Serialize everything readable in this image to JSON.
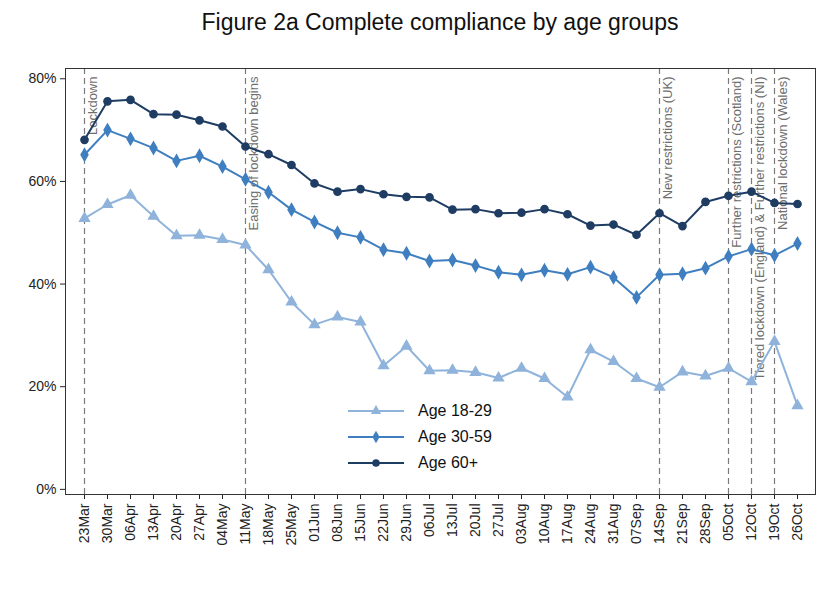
{
  "chart_data": {
    "type": "line",
    "title": "Figure 2a Complete compliance by age groups",
    "categories": [
      "23Mar",
      "30Mar",
      "06Apr",
      "13Apr",
      "20Apr",
      "27Apr",
      "04May",
      "11May",
      "18May",
      "25May",
      "01Jun",
      "08Jun",
      "15Jun",
      "22Jun",
      "29Jun",
      "06Jul",
      "13Jul",
      "20Jul",
      "27Jul",
      "03Aug",
      "10Aug",
      "17Aug",
      "24Aug",
      "31Aug",
      "07Sep",
      "14Sep",
      "21Sep",
      "28Sep",
      "05Oct",
      "12Oct",
      "19Oct",
      "26Oct"
    ],
    "series": [
      {
        "name": "Age 18-29",
        "color": "#8fb3da",
        "marker": "triangle",
        "values": [
          52.8,
          55.5,
          57.3,
          53.2,
          49.4,
          49.5,
          48.7,
          47.6,
          42.8,
          36.5,
          32.1,
          33.6,
          32.6,
          24.1,
          27.9,
          23.1,
          23.2,
          22.8,
          21.7,
          23.6,
          21.6,
          18.0,
          27.2,
          24.9,
          21.6,
          19.9,
          22.9,
          22.1,
          23.6,
          21.0,
          28.8,
          16.3
        ]
      },
      {
        "name": "Age 30-59",
        "color": "#3f7fc0",
        "marker": "diamond",
        "values": [
          65.2,
          70.0,
          68.3,
          66.5,
          64.0,
          65.0,
          62.9,
          60.4,
          57.9,
          54.5,
          52.1,
          50.0,
          49.1,
          46.7,
          46.0,
          44.5,
          44.7,
          43.6,
          42.3,
          41.8,
          42.7,
          41.9,
          43.3,
          41.3,
          37.4,
          41.8,
          42.0,
          43.1,
          45.4,
          46.8,
          45.6,
          47.9
        ]
      },
      {
        "name": "Age 60+",
        "color": "#1f3d63",
        "marker": "circle",
        "values": [
          68.1,
          75.6,
          75.9,
          73.1,
          73.0,
          71.9,
          70.7,
          66.8,
          65.3,
          63.2,
          59.6,
          58.0,
          58.5,
          57.5,
          57.0,
          56.9,
          54.5,
          54.6,
          53.8,
          53.9,
          54.6,
          53.6,
          51.4,
          51.6,
          49.6,
          53.8,
          51.3,
          56.0,
          57.2,
          58.0,
          55.8,
          55.6
        ]
      }
    ],
    "ylim": [
      -1,
      82
    ],
    "yticks": [
      {
        "value": 0,
        "label": "0%"
      },
      {
        "value": 20,
        "label": "20%"
      },
      {
        "value": 40,
        "label": "40%"
      },
      {
        "value": 60,
        "label": "60%"
      },
      {
        "value": 80,
        "label": "80%"
      }
    ],
    "annotations": [
      {
        "text": "Lockdown",
        "x": "23Mar"
      },
      {
        "text": "Easing of lockdown begins",
        "x": "11May"
      },
      {
        "text": "New restrictions (UK)",
        "x": "14Sep"
      },
      {
        "text": "Further restrictions (Scotland)",
        "x": "05Oct"
      },
      {
        "text": "Tiered lockdown (England) & Further restrictions (NI)",
        "x": "12Oct"
      },
      {
        "text": "National lockdown (Wales)",
        "x": "19Oct"
      }
    ],
    "legend": "bottom",
    "grid": false
  }
}
